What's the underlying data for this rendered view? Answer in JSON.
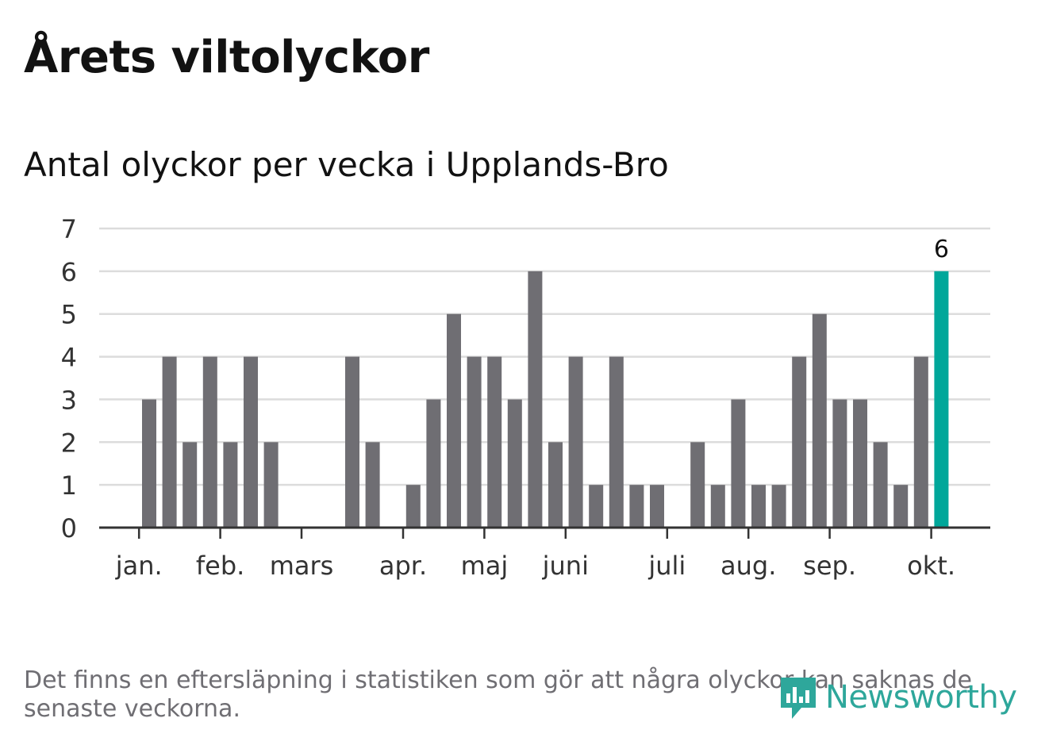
{
  "header": {
    "title": "Årets viltolyckor",
    "subtitle": "Antal olyckor per vecka i Upplands-Bro"
  },
  "footer": {
    "note": "Det finns en eftersläpning i statistiken som gör att några olyckor kan saknas de senaste veckorna.",
    "logo_text": "Newsworthy",
    "logo_icon": "newsworthy-logo-icon"
  },
  "colors": {
    "bar": "#6f6e73",
    "highlight": "#00a79a",
    "grid": "#dcdcdc",
    "axis": "#333333",
    "brand": "#2ea79b"
  },
  "chart_data": {
    "type": "bar",
    "title": "Antal olyckor per vecka i Upplands-Bro",
    "xlabel": "",
    "ylabel": "",
    "ylim": [
      0,
      7
    ],
    "yticks": [
      0,
      1,
      2,
      3,
      4,
      5,
      6,
      7
    ],
    "grid": true,
    "x": [
      1,
      2,
      3,
      4,
      5,
      6,
      7,
      8,
      9,
      10,
      11,
      12,
      13,
      14,
      15,
      16,
      17,
      18,
      19,
      20,
      21,
      22,
      23,
      24,
      25,
      26,
      27,
      28,
      29,
      30,
      31,
      32,
      33,
      34,
      35,
      36,
      37,
      38,
      39,
      40,
      41,
      42,
      43
    ],
    "values": [
      0,
      3,
      4,
      2,
      4,
      2,
      4,
      2,
      0,
      0,
      0,
      4,
      2,
      0,
      1,
      3,
      5,
      4,
      4,
      3,
      6,
      2,
      4,
      1,
      4,
      1,
      1,
      0,
      2,
      1,
      3,
      1,
      1,
      4,
      5,
      3,
      3,
      2,
      1,
      4,
      6,
      0,
      0
    ],
    "highlight_index": 40,
    "highlight_label": "6",
    "month_ticks": [
      {
        "label": "jan.",
        "week": 1.5
      },
      {
        "label": "feb.",
        "week": 5.5
      },
      {
        "label": "mars",
        "week": 9.5
      },
      {
        "label": "apr.",
        "week": 14.5
      },
      {
        "label": "maj",
        "week": 18.5
      },
      {
        "label": "juni",
        "week": 22.5
      },
      {
        "label": "juli",
        "week": 27.5
      },
      {
        "label": "aug.",
        "week": 31.5
      },
      {
        "label": "sep.",
        "week": 35.5
      },
      {
        "label": "okt.",
        "week": 40.5
      }
    ]
  }
}
